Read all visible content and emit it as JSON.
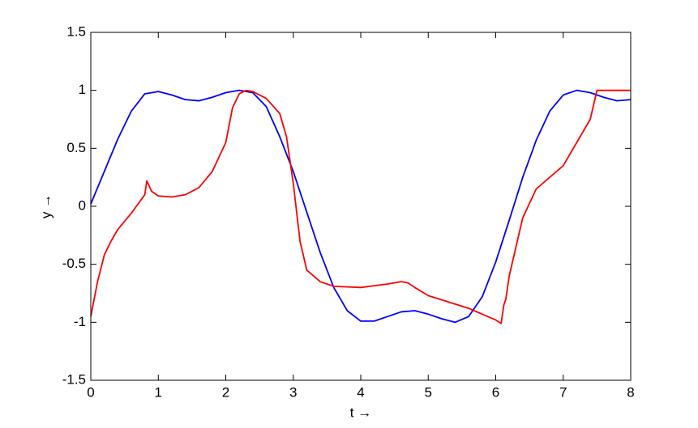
{
  "chart_data": {
    "type": "line",
    "x_label": "t →",
    "y_label": "y →",
    "xlim": [
      0,
      8
    ],
    "ylim": [
      -1.5,
      1.5
    ],
    "xticks": [
      0,
      1,
      2,
      3,
      4,
      5,
      6,
      7,
      8
    ],
    "yticks": [
      1.5,
      1,
      0.5,
      0,
      -0.5,
      -1,
      -1.5
    ],
    "grid": false,
    "series": [
      {
        "color": "#0000ff",
        "x": [
          0,
          0.2,
          0.4,
          0.6,
          0.8,
          1.0,
          1.2,
          1.4,
          1.6,
          1.8,
          2.0,
          2.2,
          2.4,
          2.6,
          2.8,
          3.0,
          3.2,
          3.4,
          3.6,
          3.8,
          4.0,
          4.2,
          4.4,
          4.6,
          4.8,
          5.0,
          5.2,
          5.4,
          5.6,
          5.8,
          6.0,
          6.2,
          6.4,
          6.6,
          6.8,
          7.0,
          7.2,
          7.4,
          7.6,
          7.8,
          8.0
        ],
        "values": [
          0.02,
          0.3,
          0.58,
          0.82,
          0.97,
          0.99,
          0.96,
          0.92,
          0.91,
          0.94,
          0.98,
          1.0,
          0.98,
          0.86,
          0.6,
          0.3,
          -0.05,
          -0.4,
          -0.7,
          -0.9,
          -0.99,
          -0.99,
          -0.95,
          -0.91,
          -0.9,
          -0.93,
          -0.97,
          -1.0,
          -0.95,
          -0.78,
          -0.48,
          -0.12,
          0.25,
          0.57,
          0.82,
          0.96,
          1.0,
          0.98,
          0.94,
          0.91,
          0.92
        ]
      },
      {
        "color": "#ff0000",
        "x": [
          0,
          0.1,
          0.2,
          0.3,
          0.4,
          0.6,
          0.8,
          0.83,
          0.9,
          1.0,
          1.2,
          1.4,
          1.6,
          1.8,
          2.0,
          2.1,
          2.2,
          2.3,
          2.4,
          2.6,
          2.8,
          2.9,
          3.0,
          3.1,
          3.2,
          3.4,
          3.6,
          4.0,
          4.4,
          4.6,
          4.7,
          4.8,
          5.0,
          5.6,
          6.0,
          6.08,
          6.12,
          6.15,
          6.2,
          6.4,
          6.6,
          7.0,
          7.4,
          7.5,
          8.0
        ],
        "values": [
          -0.95,
          -0.65,
          -0.42,
          -0.3,
          -0.2,
          -0.06,
          0.1,
          0.22,
          0.13,
          0.09,
          0.08,
          0.1,
          0.16,
          0.3,
          0.55,
          0.85,
          0.97,
          1.0,
          0.99,
          0.93,
          0.8,
          0.6,
          0.2,
          -0.3,
          -0.55,
          -0.65,
          -0.69,
          -0.7,
          -0.67,
          -0.65,
          -0.66,
          -0.7,
          -0.77,
          -0.88,
          -0.98,
          -1.01,
          -0.85,
          -0.8,
          -0.6,
          -0.1,
          0.15,
          0.35,
          0.75,
          1.0,
          1.0
        ]
      }
    ]
  }
}
